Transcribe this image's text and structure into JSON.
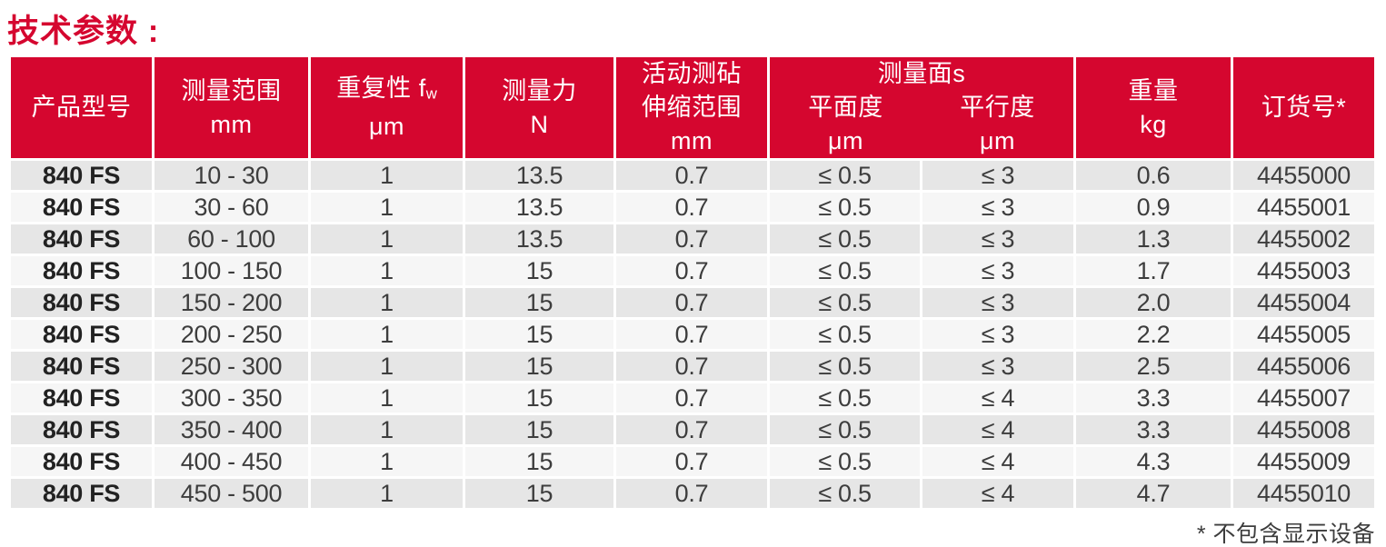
{
  "page": {
    "title": "技术参数 :",
    "footnote": "* 不包含显示设备"
  },
  "colors": {
    "brand_red": "#d5062f",
    "row_odd": "#e6e6e6",
    "row_even": "#f6f6f6",
    "data_text": "#3d3d3d"
  },
  "table": {
    "headers": {
      "model": "产品型号",
      "range": {
        "line1": "测量范围",
        "line2": "mm"
      },
      "repeatability": {
        "main": "重复性 f",
        "sub": "w",
        "unit": "μm"
      },
      "force": {
        "line1": "测量力",
        "line2": "N"
      },
      "anvil": {
        "line1": "活动测砧",
        "line2": "伸缩范围",
        "line3": "mm"
      },
      "surfaces": {
        "group": "测量面s",
        "flatness": "平面度",
        "parallelism": "平行度",
        "flatness_unit": "μm",
        "parallelism_unit": "μm"
      },
      "weight": {
        "line1": "重量",
        "line2": "kg"
      },
      "order": "订货号*"
    },
    "rows": [
      {
        "model": "840 FS",
        "range": "10 - 30",
        "repeatability": "1",
        "force": "13.5",
        "anvil": "0.7",
        "flatness": "≤ 0.5",
        "parallelism": "≤ 3",
        "weight": "0.6",
        "order": "4455000"
      },
      {
        "model": "840 FS",
        "range": "30 - 60",
        "repeatability": "1",
        "force": "13.5",
        "anvil": "0.7",
        "flatness": "≤ 0.5",
        "parallelism": "≤ 3",
        "weight": "0.9",
        "order": "4455001"
      },
      {
        "model": "840 FS",
        "range": "60 - 100",
        "repeatability": "1",
        "force": "13.5",
        "anvil": "0.7",
        "flatness": "≤ 0.5",
        "parallelism": "≤ 3",
        "weight": "1.3",
        "order": "4455002"
      },
      {
        "model": "840 FS",
        "range": "100 - 150",
        "repeatability": "1",
        "force": "15",
        "anvil": "0.7",
        "flatness": "≤ 0.5",
        "parallelism": "≤ 3",
        "weight": "1.7",
        "order": "4455003"
      },
      {
        "model": "840 FS",
        "range": "150 - 200",
        "repeatability": "1",
        "force": "15",
        "anvil": "0.7",
        "flatness": "≤ 0.5",
        "parallelism": "≤ 3",
        "weight": "2.0",
        "order": "4455004"
      },
      {
        "model": "840 FS",
        "range": "200 - 250",
        "repeatability": "1",
        "force": "15",
        "anvil": "0.7",
        "flatness": "≤ 0.5",
        "parallelism": "≤ 3",
        "weight": "2.2",
        "order": "4455005"
      },
      {
        "model": "840 FS",
        "range": "250 - 300",
        "repeatability": "1",
        "force": "15",
        "anvil": "0.7",
        "flatness": "≤ 0.5",
        "parallelism": "≤ 3",
        "weight": "2.5",
        "order": "4455006"
      },
      {
        "model": "840 FS",
        "range": "300 - 350",
        "repeatability": "1",
        "force": "15",
        "anvil": "0.7",
        "flatness": "≤ 0.5",
        "parallelism": "≤ 4",
        "weight": "3.3",
        "order": "4455007"
      },
      {
        "model": "840 FS",
        "range": "350 - 400",
        "repeatability": "1",
        "force": "15",
        "anvil": "0.7",
        "flatness": "≤ 0.5",
        "parallelism": "≤ 4",
        "weight": "3.3",
        "order": "4455008"
      },
      {
        "model": "840 FS",
        "range": "400 - 450",
        "repeatability": "1",
        "force": "15",
        "anvil": "0.7",
        "flatness": "≤ 0.5",
        "parallelism": "≤ 4",
        "weight": "4.3",
        "order": "4455009"
      },
      {
        "model": "840 FS",
        "range": "450 - 500",
        "repeatability": "1",
        "force": "15",
        "anvil": "0.7",
        "flatness": "≤ 0.5",
        "parallelism": "≤ 4",
        "weight": "4.7",
        "order": "4455010"
      }
    ]
  }
}
